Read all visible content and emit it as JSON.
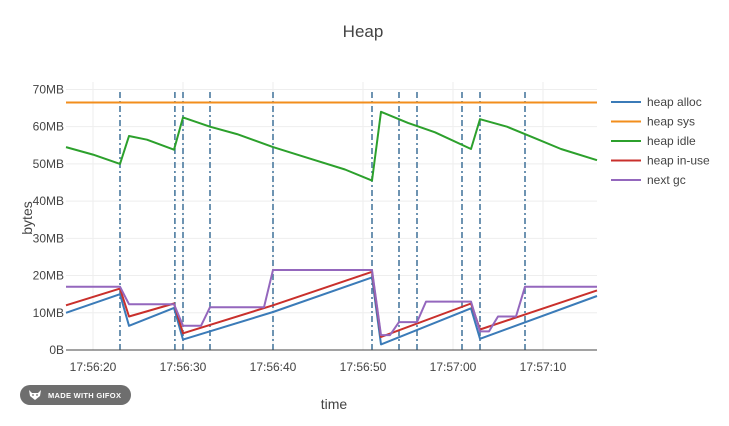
{
  "chart_data": {
    "type": "line",
    "title": "Heap",
    "xlabel": "time",
    "ylabel": "bytes",
    "x_range": [
      "17:56:17",
      "17:57:16"
    ],
    "ylim": [
      0,
      72
    ],
    "y_unit": "MB",
    "yticks": [
      0,
      10,
      20,
      30,
      40,
      50,
      60,
      70
    ],
    "ytick_labels": [
      "0B",
      "10MB",
      "20MB",
      "30MB",
      "40MB",
      "50MB",
      "60MB",
      "70MB"
    ],
    "xticks": [
      "17:56:20",
      "17:56:30",
      "17:56:40",
      "17:56:50",
      "17:57:00",
      "17:57:10"
    ],
    "grid": true,
    "legend_position": "right",
    "gc_events": [
      "17:56:23",
      "17:56:29.1",
      "17:56:30",
      "17:56:33",
      "17:56:40",
      "17:56:51",
      "17:56:54",
      "17:56:56",
      "17:57:01",
      "17:57:03",
      "17:57:08"
    ],
    "series": [
      {
        "name": "heap alloc",
        "color": "#3b7bb8",
        "points": [
          [
            "17:56:17",
            10
          ],
          [
            "17:56:23",
            15
          ],
          [
            "17:56:24",
            6.5
          ],
          [
            "17:56:29",
            11.3
          ],
          [
            "17:56:30",
            2.8
          ],
          [
            "17:56:40",
            10.2
          ],
          [
            "17:56:51",
            19.5
          ],
          [
            "17:56:52",
            1.5
          ],
          [
            "17:57:02",
            11.2
          ],
          [
            "17:57:03",
            3
          ],
          [
            "17:57:16",
            14.5
          ]
        ]
      },
      {
        "name": "heap sys",
        "color": "#f28e1c",
        "points": [
          [
            "17:56:17",
            66.5
          ],
          [
            "17:57:16",
            66.5
          ]
        ]
      },
      {
        "name": "heap idle",
        "color": "#2ca02c",
        "points": [
          [
            "17:56:17",
            54.5
          ],
          [
            "17:56:20",
            52.5
          ],
          [
            "17:56:23",
            50
          ],
          [
            "17:56:24",
            57.5
          ],
          [
            "17:56:26",
            56.5
          ],
          [
            "17:56:29",
            53.8
          ],
          [
            "17:56:30",
            62.5
          ],
          [
            "17:56:33",
            60
          ],
          [
            "17:56:36",
            58
          ],
          [
            "17:56:40",
            54.5
          ],
          [
            "17:56:44",
            51.5
          ],
          [
            "17:56:48",
            48.5
          ],
          [
            "17:56:51",
            45.5
          ],
          [
            "17:56:52",
            64
          ],
          [
            "17:56:55",
            61
          ],
          [
            "17:56:58",
            58.5
          ],
          [
            "17:57:02",
            54
          ],
          [
            "17:57:03",
            62
          ],
          [
            "17:57:06",
            60
          ],
          [
            "17:57:09",
            57
          ],
          [
            "17:57:12",
            54
          ],
          [
            "17:57:16",
            51
          ]
        ]
      },
      {
        "name": "heap in-use",
        "color": "#c9302c",
        "points": [
          [
            "17:56:17",
            12
          ],
          [
            "17:56:23",
            16.5
          ],
          [
            "17:56:24",
            9
          ],
          [
            "17:56:29",
            12.5
          ],
          [
            "17:56:30",
            4.5
          ],
          [
            "17:56:40",
            12
          ],
          [
            "17:56:51",
            21
          ],
          [
            "17:56:52",
            3.5
          ],
          [
            "17:57:02",
            12.5
          ],
          [
            "17:57:03",
            5.5
          ],
          [
            "17:57:16",
            16
          ]
        ]
      },
      {
        "name": "next gc",
        "color": "#9467bd",
        "points": [
          [
            "17:56:17",
            17
          ],
          [
            "17:56:23",
            17
          ],
          [
            "17:56:24",
            12.3
          ],
          [
            "17:56:29",
            12.3
          ],
          [
            "17:56:30",
            6.5
          ],
          [
            "17:56:32",
            6.5
          ],
          [
            "17:56:33",
            11.5
          ],
          [
            "17:56:39",
            11.5
          ],
          [
            "17:56:40",
            21.5
          ],
          [
            "17:56:51",
            21.5
          ],
          [
            "17:56:52",
            4
          ],
          [
            "17:56:53",
            4
          ],
          [
            "17:56:54",
            7.5
          ],
          [
            "17:56:56",
            7.5
          ],
          [
            "17:56:57",
            13
          ],
          [
            "17:57:02",
            13
          ],
          [
            "17:57:03",
            5
          ],
          [
            "17:57:04",
            5
          ],
          [
            "17:57:05",
            9
          ],
          [
            "17:57:07",
            9
          ],
          [
            "17:57:08",
            17
          ],
          [
            "17:57:16",
            17
          ]
        ]
      }
    ]
  },
  "watermark": {
    "text": "MADE WITH GIFOX"
  },
  "colors": {
    "axis_text": "#444444",
    "grid": "#eeeeee",
    "gc_line": "#4a7a9f",
    "badge_bg": "#6e6e6e"
  }
}
